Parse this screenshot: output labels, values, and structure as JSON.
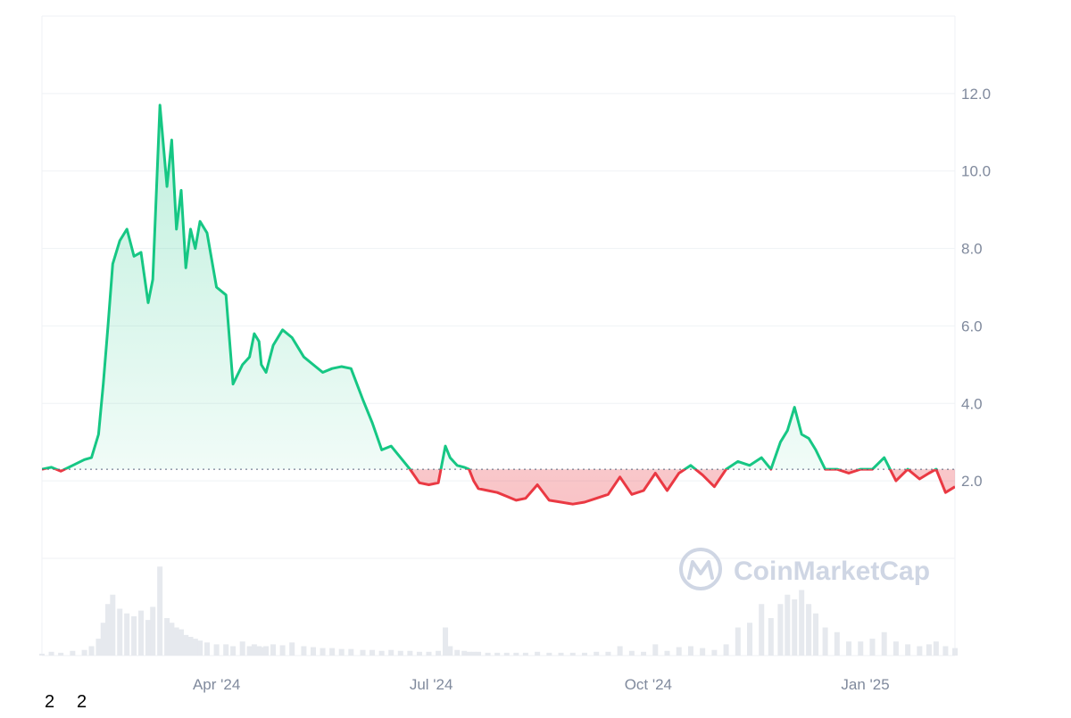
{
  "colors": {
    "up": "#16c784",
    "down": "#ea3943",
    "grid": "#eff2f5",
    "tick_text": "#808a9d",
    "volume": "#e6e9ee",
    "watermark": "#cfd6e4",
    "baseline": "#58667e"
  },
  "watermark": {
    "text": "CoinMarketCap",
    "icon": "coinmarketcap-logo-icon"
  },
  "bottom_labels": [
    "2",
    "2"
  ],
  "chart_data": {
    "type": "area",
    "baseline_value": 2.3,
    "y_axis": {
      "position": "right",
      "range": [
        0,
        14
      ],
      "ticks": [
        "2.0",
        "4.0",
        "6.0",
        "8.0",
        "10.0",
        "12.0"
      ]
    },
    "x_axis": {
      "range": [
        "2024-01-18",
        "2025-02-08"
      ],
      "ticks": [
        "Apr '24",
        "Jul '24",
        "Oct '24",
        "Jan '25"
      ]
    },
    "grid": true,
    "series": [
      {
        "x": [
          "2024-01-18",
          "2024-01-22",
          "2024-01-26",
          "2024-01-31",
          "2024-02-05",
          "2024-02-08",
          "2024-02-11",
          "2024-02-13",
          "2024-02-15",
          "2024-02-17",
          "2024-02-20",
          "2024-02-23",
          "2024-02-26",
          "2024-02-29",
          "2024-03-03",
          "2024-03-05",
          "2024-03-08",
          "2024-03-11",
          "2024-03-13",
          "2024-03-15",
          "2024-03-17",
          "2024-03-19",
          "2024-03-21",
          "2024-03-23",
          "2024-03-25",
          "2024-03-28",
          "2024-04-01",
          "2024-04-05",
          "2024-04-08",
          "2024-04-12",
          "2024-04-15",
          "2024-04-17",
          "2024-04-19",
          "2024-04-20",
          "2024-04-22",
          "2024-04-25",
          "2024-04-29",
          "2024-05-03",
          "2024-05-08",
          "2024-05-12",
          "2024-05-16",
          "2024-05-20",
          "2024-05-24",
          "2024-05-28",
          "2024-06-02",
          "2024-06-06",
          "2024-06-10",
          "2024-06-14",
          "2024-06-18",
          "2024-06-22",
          "2024-06-26",
          "2024-06-30",
          "2024-07-04",
          "2024-07-07",
          "2024-07-09",
          "2024-07-12",
          "2024-07-15",
          "2024-07-17",
          "2024-07-19",
          "2024-07-21",
          "2024-07-25",
          "2024-07-29",
          "2024-08-02",
          "2024-08-06",
          "2024-08-10",
          "2024-08-15",
          "2024-08-20",
          "2024-08-25",
          "2024-08-30",
          "2024-09-04",
          "2024-09-09",
          "2024-09-14",
          "2024-09-19",
          "2024-09-24",
          "2024-09-29",
          "2024-10-04",
          "2024-10-09",
          "2024-10-14",
          "2024-10-19",
          "2024-10-24",
          "2024-10-29",
          "2024-11-03",
          "2024-11-08",
          "2024-11-13",
          "2024-11-18",
          "2024-11-22",
          "2024-11-26",
          "2024-11-29",
          "2024-12-02",
          "2024-12-05",
          "2024-12-08",
          "2024-12-11",
          "2024-12-15",
          "2024-12-20",
          "2024-12-25",
          "2024-12-30",
          "2025-01-04",
          "2025-01-09",
          "2025-01-14",
          "2025-01-19",
          "2025-01-24",
          "2025-01-28",
          "2025-01-31",
          "2025-02-04",
          "2025-02-08"
        ],
        "values": [
          2.3,
          2.35,
          2.25,
          2.4,
          2.55,
          2.6,
          3.2,
          4.5,
          6.0,
          7.6,
          8.2,
          8.5,
          7.8,
          7.9,
          6.6,
          7.2,
          11.7,
          9.6,
          10.8,
          8.5,
          9.5,
          7.5,
          8.5,
          8.0,
          8.7,
          8.4,
          7.0,
          6.8,
          4.5,
          5.0,
          5.2,
          5.8,
          5.6,
          5.0,
          4.8,
          5.5,
          5.9,
          5.7,
          5.2,
          5.0,
          4.8,
          4.9,
          4.95,
          4.9,
          4.1,
          3.5,
          2.8,
          2.9,
          2.6,
          2.3,
          1.95,
          1.9,
          1.95,
          2.9,
          2.6,
          2.4,
          2.35,
          2.3,
          2.0,
          1.8,
          1.75,
          1.7,
          1.6,
          1.5,
          1.55,
          1.9,
          1.5,
          1.45,
          1.4,
          1.45,
          1.55,
          1.65,
          2.1,
          1.65,
          1.75,
          2.2,
          1.75,
          2.2,
          2.4,
          2.15,
          1.85,
          2.3,
          2.5,
          2.4,
          2.6,
          2.3,
          3.0,
          3.3,
          3.9,
          3.2,
          3.1,
          2.8,
          2.3,
          2.3,
          2.2,
          2.3,
          2.3,
          2.6,
          2.0,
          2.3,
          2.05,
          2.2,
          2.3,
          1.7,
          1.85
        ]
      }
    ],
    "volume": [
      0.02,
      0.04,
      0.03,
      0.05,
      0.06,
      0.1,
      0.18,
      0.35,
      0.55,
      0.65,
      0.5,
      0.45,
      0.42,
      0.48,
      0.38,
      0.52,
      0.95,
      0.4,
      0.35,
      0.3,
      0.28,
      0.22,
      0.2,
      0.18,
      0.16,
      0.14,
      0.12,
      0.12,
      0.1,
      0.15,
      0.1,
      0.12,
      0.1,
      0.09,
      0.1,
      0.12,
      0.11,
      0.14,
      0.1,
      0.09,
      0.08,
      0.08,
      0.07,
      0.07,
      0.06,
      0.06,
      0.05,
      0.06,
      0.05,
      0.05,
      0.04,
      0.04,
      0.05,
      0.3,
      0.1,
      0.06,
      0.05,
      0.04,
      0.04,
      0.04,
      0.03,
      0.03,
      0.03,
      0.03,
      0.03,
      0.04,
      0.03,
      0.03,
      0.03,
      0.03,
      0.04,
      0.04,
      0.1,
      0.05,
      0.04,
      0.12,
      0.05,
      0.09,
      0.1,
      0.08,
      0.06,
      0.12,
      0.3,
      0.35,
      0.55,
      0.4,
      0.55,
      0.65,
      0.6,
      0.7,
      0.55,
      0.45,
      0.3,
      0.25,
      0.15,
      0.15,
      0.18,
      0.25,
      0.15,
      0.12,
      0.1,
      0.12,
      0.15,
      0.1,
      0.08
    ]
  }
}
